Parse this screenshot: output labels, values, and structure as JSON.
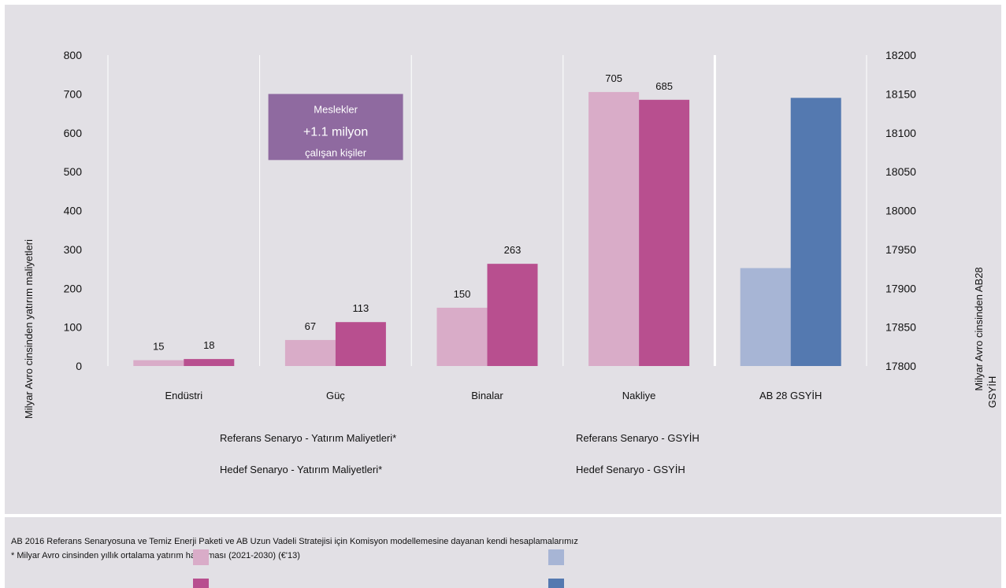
{
  "chart_data": {
    "type": "bar",
    "categories": [
      "Endüstri",
      "Güç",
      "Binalar",
      "Nakliye",
      "AB 28 GSYİH"
    ],
    "series": [
      {
        "name": "Referans Senaryo - Yatırım Maliyetleri*",
        "axis": "left",
        "values": [
          15,
          67,
          150,
          705,
          null
        ],
        "color": "#d9acc8"
      },
      {
        "name": "Hedef Senaryo - Yatırım Maliyetleri*",
        "axis": "left",
        "values": [
          18,
          113,
          263,
          685,
          null
        ],
        "color": "#b84f8f"
      },
      {
        "name": "Referans Senaryo - GSYİH",
        "axis": "right",
        "values": [
          null,
          null,
          null,
          null,
          17926
        ],
        "color": "#a7b5d5"
      },
      {
        "name": "Hedef Senaryo - GSYİH",
        "axis": "right",
        "values": [
          null,
          null,
          null,
          null,
          18145
        ],
        "color": "#5479b0"
      }
    ],
    "data_labels": [
      [
        "15",
        "18"
      ],
      [
        "67",
        "113"
      ],
      [
        "150",
        "263"
      ],
      [
        "705",
        "685"
      ],
      [
        "",
        ""
      ]
    ],
    "ylabel": "Milyar Avro cinsinden yatırım maliyetleri",
    "y2label_line1": "Milyar Avro cinsinden AB28",
    "y2label_line2": "GSYİH",
    "ylim": [
      0,
      800
    ],
    "y2lim": [
      17800,
      18200
    ],
    "yticks": [
      "0",
      "100",
      "200",
      "300",
      "400",
      "500",
      "600",
      "700",
      "800"
    ],
    "y2ticks": [
      "17800",
      "17850",
      "17900",
      "17950",
      "18000",
      "18050",
      "18100",
      "18150",
      "18200"
    ],
    "grid": "vertical",
    "annotation": {
      "line1": "Meslekler",
      "line2": "+1.1 milyon",
      "line3": "çalışan kişiler",
      "color": "#8f6aa0"
    }
  },
  "legend": {
    "ref_invest": "Referans Senaryo - Yatırım Maliyetleri*",
    "target_invest": "Hedef Senaryo - Yatırım Maliyetleri*",
    "ref_gdp": "Referans Senaryo - GSYİH",
    "target_gdp": "Hedef Senaryo - GSYİH"
  },
  "footer": {
    "source": "AB 2016 Referans Senaryosuna ve Temiz Enerji Paketi ve AB Uzun Vadeli Stratejisi için Komisyon modellemesine dayanan kendi hesaplamalarımız",
    "note": "* Milyar Avro cinsinden yıllık ortalama yatırım harcaması (2021-2030) (€'13)"
  }
}
